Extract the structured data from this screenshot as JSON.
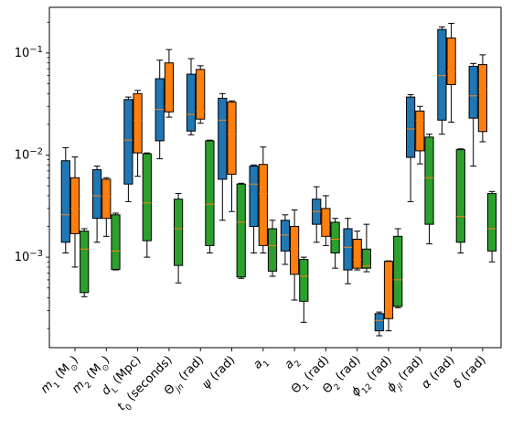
{
  "chart_data": {
    "type": "boxplot",
    "yscale": "log",
    "ylim": [
      0.00013,
      0.28
    ],
    "yticks": [
      {
        "value": 0.001,
        "base": "10",
        "exp": "−3"
      },
      {
        "value": 0.01,
        "base": "10",
        "exp": "−2"
      },
      {
        "value": 0.1,
        "base": "10",
        "exp": "−1"
      }
    ],
    "categories": [
      {
        "html": "<tspan font-style=\"italic\">m</tspan><tspan baseline-shift=\"sub\" font-size=\"9\">1</tspan><tspan> (M</tspan><tspan baseline-shift=\"sub\" font-size=\"9\">⊙</tspan><tspan>)</tspan>",
        "text": "m1 (M⊙)"
      },
      {
        "html": "<tspan font-style=\"italic\">m</tspan><tspan baseline-shift=\"sub\" font-size=\"9\">2</tspan><tspan> (M</tspan><tspan baseline-shift=\"sub\" font-size=\"9\">⊙</tspan><tspan>)</tspan>",
        "text": "m2 (M⊙)"
      },
      {
        "html": "<tspan font-style=\"italic\">d</tspan><tspan baseline-shift=\"sub\" font-size=\"9\">L</tspan><tspan> (Mpc)</tspan>",
        "text": "dL (Mpc)"
      },
      {
        "html": "<tspan font-style=\"italic\">t</tspan><tspan baseline-shift=\"sub\" font-size=\"9\">0</tspan><tspan> (seconds)</tspan>",
        "text": "t0 (seconds)"
      },
      {
        "html": "<tspan>Θ</tspan><tspan baseline-shift=\"sub\" font-size=\"9\" font-style=\"italic\">jn</tspan><tspan> (rad)</tspan>",
        "text": "Θjn (rad)"
      },
      {
        "html": "<tspan font-style=\"italic\">ψ</tspan><tspan> (rad)</tspan>",
        "text": "ψ (rad)"
      },
      {
        "html": "<tspan font-style=\"italic\">a</tspan><tspan baseline-shift=\"sub\" font-size=\"9\">1</tspan>",
        "text": "a1"
      },
      {
        "html": "<tspan font-style=\"italic\">a</tspan><tspan baseline-shift=\"sub\" font-size=\"9\">2</tspan>",
        "text": "a2"
      },
      {
        "html": "<tspan>Θ</tspan><tspan baseline-shift=\"sub\" font-size=\"9\">1</tspan><tspan> (rad)</tspan>",
        "text": "Θ1 (rad)"
      },
      {
        "html": "<tspan>Θ</tspan><tspan baseline-shift=\"sub\" font-size=\"9\">2</tspan><tspan> (rad)</tspan>",
        "text": "Θ2 (rad)"
      },
      {
        "html": "<tspan font-style=\"italic\">ϕ</tspan><tspan baseline-shift=\"sub\" font-size=\"9\">12</tspan><tspan> (rad)</tspan>",
        "text": "ϕ12 (rad)"
      },
      {
        "html": "<tspan font-style=\"italic\">ϕ</tspan><tspan baseline-shift=\"sub\" font-size=\"9\" font-style=\"italic\">jl</tspan><tspan> (rad)</tspan>",
        "text": "ϕjl (rad)"
      },
      {
        "html": "<tspan font-style=\"italic\">α</tspan><tspan> (rad)</tspan>",
        "text": "α (rad)"
      },
      {
        "html": "<tspan font-style=\"italic\">δ</tspan><tspan> (rad)</tspan>",
        "text": "δ (rad)"
      }
    ],
    "median_color": "#ff7f0e",
    "series": [
      {
        "color": "#1f77b4",
        "boxes": [
          {
            "whislo": 0.0011,
            "q1": 0.0014,
            "med": 0.0026,
            "q3": 0.0088,
            "whishi": 0.0118
          },
          {
            "whislo": 0.0014,
            "q1": 0.0024,
            "med": 0.004,
            "q3": 0.0072,
            "whishi": 0.0078
          },
          {
            "whislo": 0.0035,
            "q1": 0.0052,
            "med": 0.014,
            "q3": 0.035,
            "whishi": 0.037
          },
          {
            "whislo": 0.0092,
            "q1": 0.0138,
            "med": 0.028,
            "q3": 0.056,
            "whishi": 0.085
          },
          {
            "whislo": 0.0158,
            "q1": 0.0172,
            "med": 0.025,
            "q3": 0.062,
            "whishi": 0.088
          },
          {
            "whislo": 0.0023,
            "q1": 0.0058,
            "med": 0.022,
            "q3": 0.036,
            "whishi": 0.04
          },
          {
            "whislo": 0.0011,
            "q1": 0.002,
            "med": 0.0052,
            "q3": 0.0078,
            "whishi": 0.008
          },
          {
            "whislo": 0.00085,
            "q1": 0.00115,
            "med": 0.00165,
            "q3": 0.0023,
            "whishi": 0.0026
          },
          {
            "whislo": 0.0014,
            "q1": 0.0021,
            "med": 0.0028,
            "q3": 0.0037,
            "whishi": 0.0049
          },
          {
            "whislo": 0.00055,
            "q1": 0.00075,
            "med": 0.00125,
            "q3": 0.0019,
            "whishi": 0.0024
          },
          {
            "whislo": 0.00017,
            "q1": 0.00019,
            "med": 0.00024,
            "q3": 0.00028,
            "whishi": 0.00029
          },
          {
            "whislo": 0.0035,
            "q1": 0.0095,
            "med": 0.018,
            "q3": 0.037,
            "whishi": 0.039
          },
          {
            "whislo": 0.016,
            "q1": 0.022,
            "med": 0.06,
            "q3": 0.17,
            "whishi": 0.18
          },
          {
            "whislo": 0.0078,
            "q1": 0.023,
            "med": 0.038,
            "q3": 0.074,
            "whishi": 0.079
          }
        ]
      },
      {
        "color": "#ff7f0e",
        "boxes": [
          {
            "whislo": 0.0008,
            "q1": 0.0017,
            "med": 0.003,
            "q3": 0.006,
            "whishi": 0.0096
          },
          {
            "whislo": 0.0016,
            "q1": 0.0024,
            "med": 0.0039,
            "q3": 0.0058,
            "whishi": 0.006
          },
          {
            "whislo": 0.0062,
            "q1": 0.0105,
            "med": 0.022,
            "q3": 0.04,
            "whishi": 0.043
          },
          {
            "whislo": 0.0235,
            "q1": 0.0265,
            "med": 0.03,
            "q3": 0.08,
            "whishi": 0.108
          },
          {
            "whislo": 0.0205,
            "q1": 0.0225,
            "med": 0.027,
            "q3": 0.069,
            "whishi": 0.075
          },
          {
            "whislo": 0.0028,
            "q1": 0.0065,
            "med": 0.016,
            "q3": 0.033,
            "whishi": 0.034
          },
          {
            "whislo": 0.0011,
            "q1": 0.0013,
            "med": 0.0042,
            "q3": 0.0081,
            "whishi": 0.012
          },
          {
            "whislo": 0.00038,
            "q1": 0.00068,
            "med": 0.0012,
            "q3": 0.002,
            "whishi": 0.0029
          },
          {
            "whislo": 0.0013,
            "q1": 0.0016,
            "med": 0.0021,
            "q3": 0.003,
            "whishi": 0.004
          },
          {
            "whislo": 0.00075,
            "q1": 0.00078,
            "med": 0.00095,
            "q3": 0.0015,
            "whishi": 0.0018
          },
          {
            "whislo": 0.00019,
            "q1": 0.00025,
            "med": 0.00029,
            "q3": 0.00091,
            "whishi": 0.00092
          },
          {
            "whislo": 0.0082,
            "q1": 0.011,
            "med": 0.022,
            "q3": 0.027,
            "whishi": 0.03
          },
          {
            "whislo": 0.021,
            "q1": 0.049,
            "med": 0.066,
            "q3": 0.14,
            "whishi": 0.195
          },
          {
            "whislo": 0.0135,
            "q1": 0.017,
            "med": 0.044,
            "q3": 0.077,
            "whishi": 0.096
          }
        ]
      },
      {
        "color": "#2ca02c",
        "boxes": [
          {
            "whislo": 0.00041,
            "q1": 0.00045,
            "med": 0.0012,
            "q3": 0.0018,
            "whishi": 0.0019
          },
          {
            "whislo": 0.00075,
            "q1": 0.00076,
            "med": 0.00115,
            "q3": 0.0026,
            "whishi": 0.0027
          },
          {
            "whislo": 0.001,
            "q1": 0.00145,
            "med": 0.0034,
            "q3": 0.0103,
            "whishi": 0.0105
          },
          {
            "whislo": 0.00056,
            "q1": 0.00083,
            "med": 0.0019,
            "q3": 0.0037,
            "whishi": 0.0042
          },
          {
            "whislo": 0.0011,
            "q1": 0.0013,
            "med": 0.0033,
            "q3": 0.0138,
            "whishi": 0.014
          },
          {
            "whislo": 0.00062,
            "q1": 0.00064,
            "med": 0.0022,
            "q3": 0.0052,
            "whishi": 0.0053
          },
          {
            "whislo": 0.00065,
            "q1": 0.00073,
            "med": 0.0013,
            "q3": 0.0019,
            "whishi": 0.0023
          },
          {
            "whislo": 0.00023,
            "q1": 0.00037,
            "med": 0.00065,
            "q3": 0.00095,
            "whishi": 0.001
          },
          {
            "whislo": 0.00078,
            "q1": 0.0011,
            "med": 0.0015,
            "q3": 0.0022,
            "whishi": 0.0024
          },
          {
            "whislo": 0.00072,
            "q1": 0.00078,
            "med": 0.00082,
            "q3": 0.0012,
            "whishi": 0.0021
          },
          {
            "whislo": 0.00032,
            "q1": 0.00033,
            "med": 0.0006,
            "q3": 0.0016,
            "whishi": 0.0019
          },
          {
            "whislo": 0.00135,
            "q1": 0.0021,
            "med": 0.006,
            "q3": 0.015,
            "whishi": 0.016
          },
          {
            "whislo": 0.0011,
            "q1": 0.0014,
            "med": 0.0025,
            "q3": 0.0113,
            "whishi": 0.0115
          },
          {
            "whislo": 0.0009,
            "q1": 0.00115,
            "med": 0.0019,
            "q3": 0.0042,
            "whishi": 0.0044
          }
        ]
      }
    ]
  }
}
